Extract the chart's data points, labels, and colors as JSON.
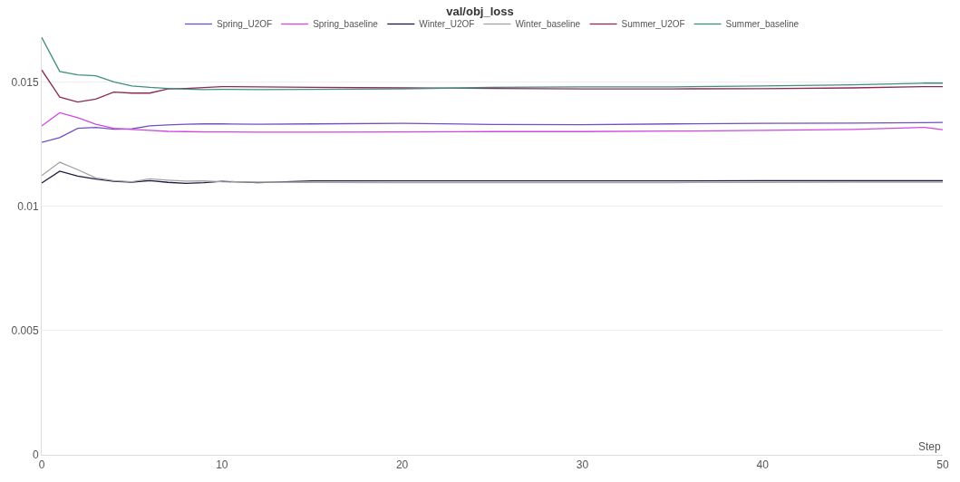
{
  "chart_data": {
    "type": "line",
    "title": "val/obj_loss",
    "xlabel": "Step",
    "x": [
      0,
      1,
      2,
      3,
      4,
      5,
      6,
      7,
      8,
      9,
      10,
      12,
      15,
      20,
      25,
      30,
      35,
      40,
      45,
      49,
      50
    ],
    "series": [
      {
        "name": "Spring_U2OF",
        "color": "#7051c0",
        "values": [
          0.01257,
          0.01276,
          0.01313,
          0.01317,
          0.0131,
          0.01311,
          0.01323,
          0.01327,
          0.0133,
          0.01331,
          0.01331,
          0.0133,
          0.01331,
          0.01333,
          0.01329,
          0.01328,
          0.01331,
          0.01333,
          0.01334,
          0.01336,
          0.01337
        ]
      },
      {
        "name": "Spring_baseline",
        "color": "#d048e0",
        "values": [
          0.01323,
          0.01376,
          0.01356,
          0.0133,
          0.01313,
          0.01309,
          0.01305,
          0.01301,
          0.013,
          0.01299,
          0.01299,
          0.01298,
          0.01298,
          0.01299,
          0.013,
          0.013,
          0.01302,
          0.01305,
          0.01309,
          0.01317,
          0.01308
        ]
      },
      {
        "name": "Winter_U2OF",
        "color": "#1c1a42",
        "values": [
          0.01093,
          0.01141,
          0.01121,
          0.01109,
          0.011,
          0.01097,
          0.01103,
          0.01096,
          0.01092,
          0.01095,
          0.011,
          0.01095,
          0.01102,
          0.01102,
          0.01102,
          0.01102,
          0.01102,
          0.01103,
          0.01103,
          0.01103,
          0.01103
        ]
      },
      {
        "name": "Winter_baseline",
        "color": "#a3a3a3",
        "values": [
          0.01123,
          0.01177,
          0.01147,
          0.01114,
          0.01103,
          0.01098,
          0.0111,
          0.01105,
          0.01101,
          0.01102,
          0.01098,
          0.01097,
          0.01096,
          0.01095,
          0.01095,
          0.01095,
          0.01095,
          0.01096,
          0.01097,
          0.01097,
          0.01097
        ]
      },
      {
        "name": "Summer_U2OF",
        "color": "#8c2a55",
        "values": [
          0.01548,
          0.01439,
          0.01419,
          0.01431,
          0.01459,
          0.01455,
          0.01455,
          0.01472,
          0.01474,
          0.01477,
          0.01481,
          0.0148,
          0.01478,
          0.01476,
          0.01474,
          0.01472,
          0.01472,
          0.01473,
          0.01476,
          0.01481,
          0.01481
        ]
      },
      {
        "name": "Summer_baseline",
        "color": "#3f8f7f",
        "values": [
          0.01679,
          0.01542,
          0.01528,
          0.01525,
          0.015,
          0.01484,
          0.01478,
          0.01474,
          0.01471,
          0.01469,
          0.0147,
          0.01469,
          0.0147,
          0.01472,
          0.01478,
          0.0148,
          0.0148,
          0.01484,
          0.01488,
          0.01495,
          0.01495
        ]
      }
    ],
    "xlim": [
      0,
      50
    ],
    "xticks": [
      0,
      10,
      20,
      30,
      40,
      50
    ],
    "ylim": [
      0,
      0.0168
    ],
    "yticks": [
      0,
      0.005,
      0.01,
      0.015
    ],
    "grid": "y",
    "legend": "top",
    "marker": "none",
    "line_style": "solid"
  }
}
